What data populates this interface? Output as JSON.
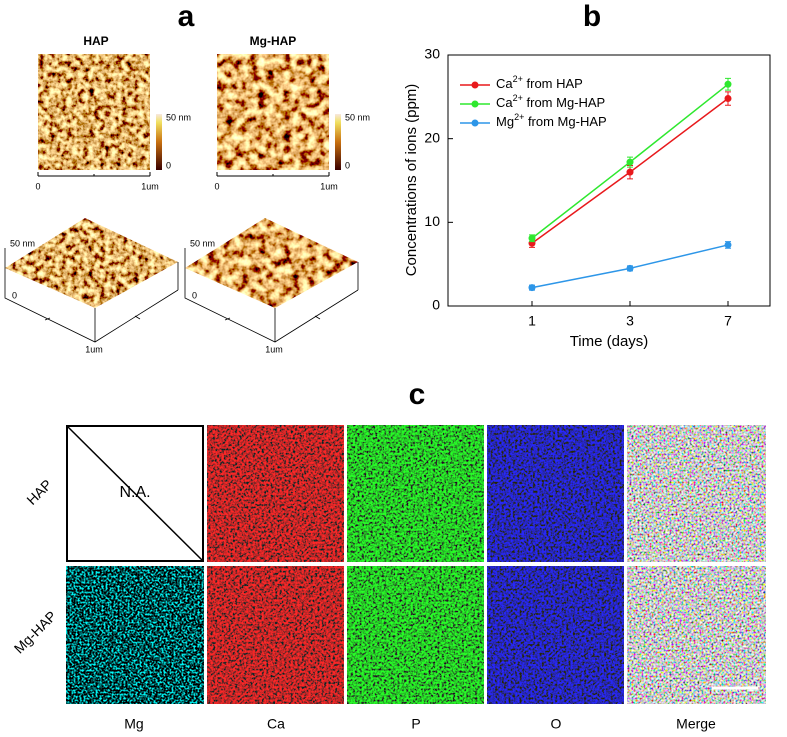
{
  "panel_a": {
    "label": "a",
    "samples": [
      {
        "name": "HAP"
      },
      {
        "name": "Mg-HAP"
      }
    ],
    "colorbar_max": "50 nm",
    "colorbar_min": "0",
    "scale_start": "0",
    "scale_end": "1um",
    "z_max": "50 nm",
    "z_min": "0",
    "xy_label": "1um"
  },
  "chart_data": {
    "type": "line",
    "panel_label": "b",
    "x_label": "Time (days)",
    "y_label": "Concentrations of ions (ppm)",
    "categories": [
      "1",
      "3",
      "7"
    ],
    "series": [
      {
        "name": "Ca2+ from HAP",
        "color": "#e8191c",
        "values": [
          7.5,
          16.0,
          24.8
        ],
        "errors": [
          0.5,
          0.8,
          0.8
        ]
      },
      {
        "name": "Ca2+ from Mg-HAP",
        "color": "#2ee82e",
        "values": [
          8.1,
          17.2,
          26.5
        ],
        "errors": [
          0.4,
          0.6,
          0.7
        ]
      },
      {
        "name": "Mg2+ from Mg-HAP",
        "color": "#2d96e8",
        "values": [
          2.2,
          4.5,
          7.3
        ],
        "errors": [
          0.3,
          0.3,
          0.4
        ]
      }
    ],
    "ylim": [
      0,
      30
    ],
    "yticks": [
      0,
      10,
      20,
      30
    ],
    "legend": "upper-left"
  },
  "panel_c": {
    "label": "c",
    "rows": [
      "HAP",
      "Mg-HAP"
    ],
    "columns": [
      "Mg",
      "Ca",
      "P",
      "O",
      "Merge"
    ],
    "na_text": "N.A."
  }
}
